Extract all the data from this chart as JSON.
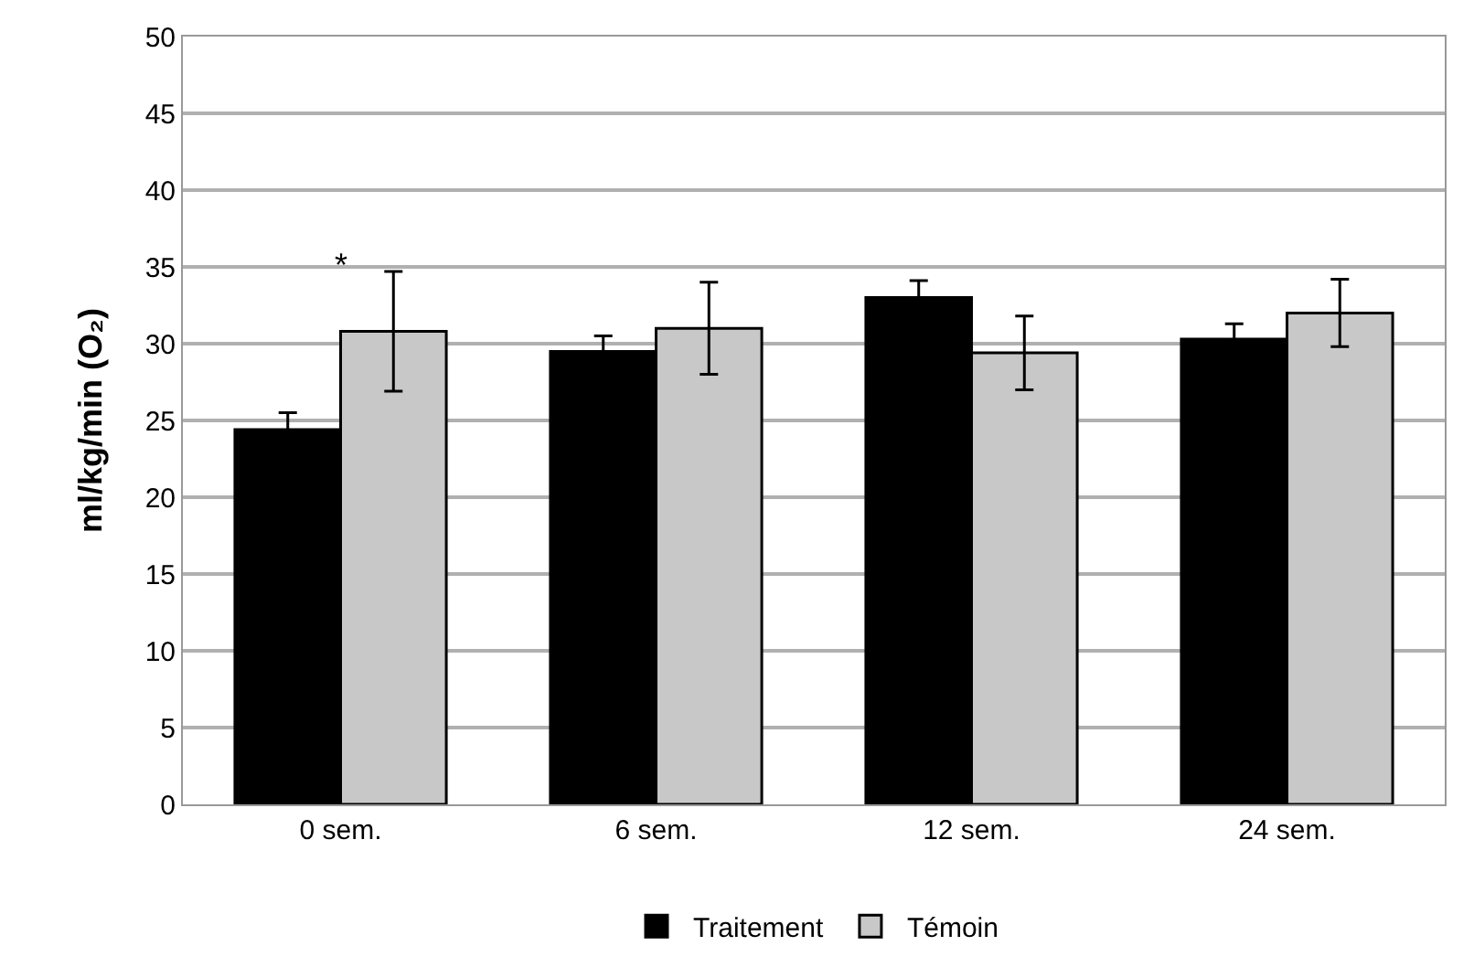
{
  "chart_data": {
    "type": "bar",
    "ylabel": "ml/kg/min (O₂)",
    "categories": [
      "0 sem.",
      "6 sem.",
      "12 sem.",
      "24 sem."
    ],
    "series": [
      {
        "name": "Traitement",
        "color": "#000000",
        "values": [
          24.4,
          29.5,
          33.0,
          30.3
        ],
        "errors": [
          1.1,
          1.0,
          1.1,
          1.0
        ]
      },
      {
        "name": "Témoin",
        "color": "#c8c8c8",
        "values": [
          30.8,
          31.0,
          29.4,
          32.0
        ],
        "errors": [
          3.9,
          3.0,
          2.4,
          2.2
        ]
      }
    ],
    "ylim": [
      0,
      50
    ],
    "yticks": [
      0,
      5,
      10,
      15,
      20,
      25,
      30,
      35,
      40,
      45,
      50
    ],
    "grid": "y",
    "legend": "bottom",
    "annotations": [
      "*"
    ]
  }
}
